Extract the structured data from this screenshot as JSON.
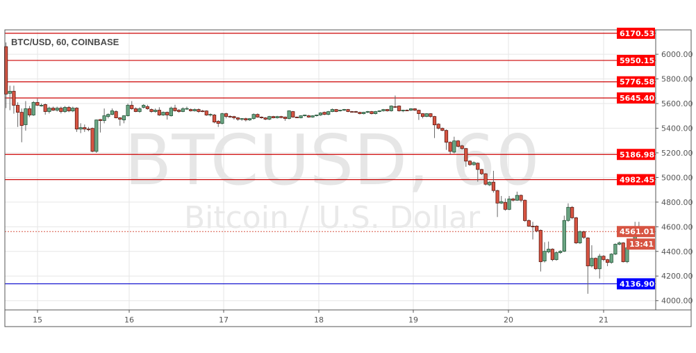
{
  "chart_data": {
    "type": "candlestick",
    "title": "BTC/USD, 60, COINBASE",
    "watermark": {
      "symbol": "BTCUSD, 60",
      "description": "Bitcoin / U.S. Dollar"
    },
    "x_tick_labels": [
      "15",
      "16",
      "17",
      "18",
      "19",
      "20",
      "21"
    ],
    "y_tick_labels": [
      "6000.00",
      "5800.00",
      "5600.00",
      "5400.00",
      "5200.00",
      "5000.00",
      "4800.00",
      "4600.00",
      "4400.00",
      "4200.00",
      "4000.00"
    ],
    "y_ticks": [
      6000,
      5800,
      5600,
      5400,
      5200,
      5000,
      4800,
      4600,
      4400,
      4200,
      4000
    ],
    "ylim": [
      3925,
      6198
    ],
    "grid": true,
    "colors": {
      "up": "#6ba583",
      "down": "#d75442",
      "border": "#225437",
      "border_down": "#5b1a13",
      "level": "#cc0000",
      "support": "#0000cc",
      "last_price": "#d75442"
    },
    "levels": [
      {
        "price": 6170.53,
        "label": "6170.53",
        "color": "#ff0000"
      },
      {
        "price": 5950.15,
        "label": "5950.15",
        "color": "#ff0000"
      },
      {
        "price": 5776.58,
        "label": "5776.58",
        "color": "#ff0000"
      },
      {
        "price": 5645.4,
        "label": "5645.40",
        "color": "#ff0000"
      },
      {
        "price": 5186.98,
        "label": "5186.98",
        "color": "#ff0000"
      },
      {
        "price": 4982.45,
        "label": "4982.45",
        "color": "#ff0000"
      },
      {
        "price": 4136.9,
        "label": "4136.90",
        "color": "#0000ff"
      }
    ],
    "last_price": {
      "price": 4561.01,
      "label": "4561.01",
      "countdown": "13:41"
    },
    "ohlc": [
      [
        6062,
        6096,
        5563,
        5677
      ],
      [
        5683,
        5745,
        5546,
        5700
      ],
      [
        5700,
        5745,
        5518,
        5586
      ],
      [
        5586,
        5610,
        5410,
        5529
      ],
      [
        5529,
        5560,
        5286,
        5422
      ],
      [
        5428,
        5620,
        5380,
        5558
      ],
      [
        5558,
        5580,
        5490,
        5507
      ],
      [
        5507,
        5620,
        5500,
        5609
      ],
      [
        5609,
        5640,
        5580,
        5586
      ],
      [
        5586,
        5600,
        5575,
        5586
      ],
      [
        5592,
        5600,
        5510,
        5535
      ],
      [
        5535,
        5575,
        5520,
        5563
      ],
      [
        5563,
        5575,
        5540,
        5546
      ],
      [
        5546,
        5575,
        5535,
        5563
      ],
      [
        5563,
        5575,
        5520,
        5535
      ],
      [
        5535,
        5580,
        5525,
        5569
      ],
      [
        5569,
        5580,
        5530,
        5540
      ],
      [
        5540,
        5575,
        5530,
        5563
      ],
      [
        5563,
        5570,
        5370,
        5393
      ],
      [
        5393,
        5440,
        5360,
        5405
      ],
      [
        5405,
        5430,
        5370,
        5393
      ],
      [
        5393,
        5410,
        5375,
        5390
      ],
      [
        5399,
        5405,
        5205,
        5212
      ],
      [
        5212,
        5470,
        5200,
        5467
      ],
      [
        5470,
        5475,
        5365,
        5462
      ],
      [
        5462,
        5560,
        5440,
        5501
      ],
      [
        5495,
        5520,
        5480,
        5512
      ],
      [
        5512,
        5560,
        5505,
        5541
      ],
      [
        5535,
        5545,
        5480,
        5484
      ],
      [
        5484,
        5490,
        5420,
        5473
      ],
      [
        5467,
        5505,
        5440,
        5501
      ],
      [
        5501,
        5600,
        5495,
        5586
      ],
      [
        5586,
        5620,
        5550,
        5558
      ],
      [
        5558,
        5570,
        5530,
        5535
      ],
      [
        5535,
        5570,
        5525,
        5558
      ],
      [
        5569,
        5595,
        5560,
        5586
      ],
      [
        5575,
        5590,
        5550,
        5558
      ],
      [
        5552,
        5560,
        5525,
        5535
      ],
      [
        5535,
        5560,
        5525,
        5546
      ],
      [
        5546,
        5570,
        5500,
        5507
      ],
      [
        5507,
        5535,
        5500,
        5529
      ],
      [
        5529,
        5535,
        5470,
        5507
      ],
      [
        5501,
        5575,
        5495,
        5563
      ],
      [
        5563,
        5590,
        5535,
        5541
      ],
      [
        5546,
        5555,
        5525,
        5535
      ],
      [
        5535,
        5570,
        5530,
        5558
      ],
      [
        5558,
        5575,
        5550,
        5560
      ],
      [
        5552,
        5560,
        5535,
        5541
      ],
      [
        5541,
        5560,
        5535,
        5552
      ],
      [
        5552,
        5560,
        5525,
        5535
      ],
      [
        5540,
        5548,
        5530,
        5538
      ],
      [
        5540,
        5545,
        5500,
        5507
      ],
      [
        5507,
        5520,
        5495,
        5512
      ],
      [
        5507,
        5515,
        5440,
        5450
      ],
      [
        5456,
        5465,
        5410,
        5439
      ],
      [
        5439,
        5525,
        5430,
        5518
      ],
      [
        5518,
        5525,
        5480,
        5495
      ],
      [
        5496,
        5505,
        5485,
        5494
      ],
      [
        5495,
        5500,
        5470,
        5484
      ],
      [
        5484,
        5490,
        5460,
        5473
      ],
      [
        5473,
        5482,
        5460,
        5478
      ],
      [
        5478,
        5485,
        5455,
        5467
      ],
      [
        5467,
        5482,
        5460,
        5478
      ],
      [
        5478,
        5520,
        5470,
        5512
      ],
      [
        5512,
        5520,
        5485,
        5490
      ],
      [
        5490,
        5495,
        5478,
        5484
      ],
      [
        5484,
        5490,
        5465,
        5473
      ],
      [
        5473,
        5500,
        5465,
        5495
      ],
      [
        5495,
        5500,
        5480,
        5484
      ],
      [
        5484,
        5500,
        5478,
        5495
      ],
      [
        5495,
        5500,
        5480,
        5486
      ],
      [
        5490,
        5495,
        5460,
        5478
      ],
      [
        5478,
        5545,
        5472,
        5541
      ],
      [
        5535,
        5540,
        5485,
        5490
      ],
      [
        5490,
        5495,
        5482,
        5488
      ],
      [
        5484,
        5505,
        5480,
        5501
      ],
      [
        5501,
        5510,
        5495,
        5507
      ],
      [
        5501,
        5508,
        5485,
        5490
      ],
      [
        5490,
        5505,
        5485,
        5501
      ],
      [
        5501,
        5510,
        5495,
        5507
      ],
      [
        5507,
        5530,
        5500,
        5524
      ],
      [
        5529,
        5535,
        5505,
        5512
      ],
      [
        5512,
        5540,
        5505,
        5535
      ],
      [
        5535,
        5560,
        5530,
        5552
      ],
      [
        5552,
        5556,
        5530,
        5535
      ],
      [
        5541,
        5550,
        5535,
        5546
      ],
      [
        5546,
        5556,
        5540,
        5552
      ],
      [
        5552,
        5556,
        5530,
        5535
      ],
      [
        5535,
        5540,
        5528,
        5533
      ],
      [
        5535,
        5540,
        5525,
        5529
      ],
      [
        5529,
        5533,
        5512,
        5518
      ],
      [
        5518,
        5533,
        5512,
        5529
      ],
      [
        5529,
        5540,
        5522,
        5535
      ],
      [
        5535,
        5540,
        5512,
        5518
      ],
      [
        5518,
        5540,
        5512,
        5535
      ],
      [
        5535,
        5545,
        5530,
        5541
      ],
      [
        5541,
        5556,
        5535,
        5552
      ],
      [
        5552,
        5556,
        5535,
        5541
      ],
      [
        5541,
        5585,
        5535,
        5580
      ],
      [
        5575,
        5665,
        5565,
        5572
      ],
      [
        5580,
        5585,
        5535,
        5541
      ],
      [
        5541,
        5550,
        5530,
        5546
      ],
      [
        5546,
        5552,
        5540,
        5545
      ],
      [
        5546,
        5562,
        5540,
        5558
      ],
      [
        5558,
        5562,
        5540,
        5546
      ],
      [
        5546,
        5550,
        5467,
        5518
      ],
      [
        5518,
        5522,
        5480,
        5495
      ],
      [
        5495,
        5522,
        5490,
        5518
      ],
      [
        5518,
        5522,
        5485,
        5495
      ],
      [
        5495,
        5500,
        5320,
        5427
      ],
      [
        5433,
        5440,
        5390,
        5399
      ],
      [
        5399,
        5405,
        5375,
        5382
      ],
      [
        5382,
        5390,
        5224,
        5286
      ],
      [
        5286,
        5292,
        5190,
        5212
      ],
      [
        5206,
        5331,
        5195,
        5297
      ],
      [
        5297,
        5303,
        5245,
        5252
      ],
      [
        5257,
        5265,
        5225,
        5235
      ],
      [
        5235,
        5240,
        5087,
        5133
      ],
      [
        5133,
        5140,
        5095,
        5104
      ],
      [
        5104,
        5130,
        5095,
        5121
      ],
      [
        5116,
        5122,
        4966,
        5065
      ],
      [
        5065,
        5070,
        5020,
        5030
      ],
      [
        5030,
        5035,
        4935,
        4945
      ],
      [
        4940,
        4970,
        4930,
        4962
      ],
      [
        4962,
        5054,
        4877,
        4894
      ],
      [
        4894,
        4900,
        4679,
        4792
      ],
      [
        4792,
        4850,
        4785,
        4804
      ],
      [
        4798,
        4830,
        4730,
        4741
      ],
      [
        4741,
        4850,
        4735,
        4826
      ],
      [
        4826,
        4835,
        4805,
        4815
      ],
      [
        4815,
        4885,
        4810,
        4855
      ],
      [
        4855,
        4862,
        4800,
        4815
      ],
      [
        4815,
        4822,
        4640,
        4650
      ],
      [
        4650,
        4660,
        4600,
        4605
      ],
      [
        4605,
        4640,
        4497,
        4600
      ],
      [
        4605,
        4612,
        4555,
        4566
      ],
      [
        4571,
        4578,
        4237,
        4316
      ],
      [
        4322,
        4475,
        4310,
        4401
      ],
      [
        4396,
        4480,
        4385,
        4418
      ],
      [
        4418,
        4425,
        4320,
        4333
      ],
      [
        4333,
        4400,
        4325,
        4390
      ],
      [
        4390,
        4410,
        4380,
        4401
      ],
      [
        4401,
        4690,
        4395,
        4651
      ],
      [
        4651,
        4790,
        4640,
        4758
      ],
      [
        4758,
        4768,
        4660,
        4673
      ],
      [
        4673,
        4680,
        4460,
        4469
      ],
      [
        4469,
        4570,
        4460,
        4560
      ],
      [
        4560,
        4568,
        4500,
        4514
      ],
      [
        4509,
        4515,
        4056,
        4282
      ],
      [
        4282,
        4450,
        4270,
        4344
      ],
      [
        4344,
        4350,
        4250,
        4259
      ],
      [
        4259,
        4380,
        4180,
        4361
      ],
      [
        4361,
        4370,
        4320,
        4333
      ],
      [
        4333,
        4340,
        4280,
        4310
      ],
      [
        4310,
        4385,
        4300,
        4378
      ],
      [
        4378,
        4465,
        4370,
        4458
      ],
      [
        4458,
        4480,
        4450,
        4469
      ],
      [
        4469,
        4475,
        4310,
        4316
      ],
      [
        4316,
        4435,
        4305,
        4429
      ],
      [
        4429,
        4488,
        4420,
        4480
      ],
      [
        4480,
        4640,
        4470,
        4594
      ],
      [
        4594,
        4640,
        4555,
        4561
      ]
    ]
  }
}
